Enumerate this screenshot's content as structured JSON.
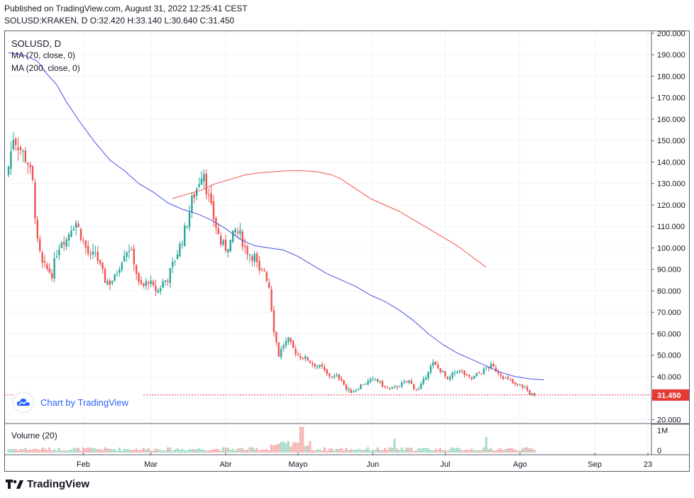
{
  "header": {
    "published": "Published on TradingView.com, August 31, 2022 12:25:41 CEST",
    "ohlc": "SOLUSD:KRAKEN, D  O:32.420  H:33.140  L:30.640  C:31.450"
  },
  "legend": {
    "symbol": "SOLUSD, D",
    "ma70": "MA (70, close, 0)",
    "ma200": "MA (200, close, 0)",
    "volume": "Volume (20)"
  },
  "attribution": "Chart by TradingView",
  "footer_logo": "TradingView",
  "colors": {
    "up": "#26a69a",
    "down": "#ef5350",
    "ma70": "#4c50e8",
    "ma200": "#f05450",
    "vol_up": "#a6dcc8",
    "vol_down": "#f5b3b3",
    "grid": "#f0f3fa",
    "last_price": "#e53935"
  },
  "chart_data": {
    "type": "candlestick",
    "symbol": "SOLUSD:KRAKEN",
    "interval": "D",
    "last_price_label": "31.450",
    "y_ticks": [
      "200.000",
      "190.000",
      "180.000",
      "170.000",
      "160.000",
      "150.000",
      "140.000",
      "130.000",
      "120.000",
      "110.000",
      "100.000",
      "90.000",
      "80.000",
      "70.000",
      "60.000",
      "50.000",
      "40.000",
      "30.000",
      "20.000"
    ],
    "ylim": [
      17.5,
      200
    ],
    "x_labels": [
      {
        "label": "Feb",
        "day": 31
      },
      {
        "label": "Mar",
        "day": 59
      },
      {
        "label": "Abr",
        "day": 90
      },
      {
        "label": "Mayo",
        "day": 120
      },
      {
        "label": "Jun",
        "day": 151
      },
      {
        "label": "Jul",
        "day": 181
      },
      {
        "label": "Ago",
        "day": 212
      },
      {
        "label": "Sep",
        "day": 243
      },
      {
        "label": "23",
        "day": 265
      }
    ],
    "volume_ticks": [
      "1M",
      "0"
    ],
    "volume_max": 1200000,
    "first_day": 0,
    "last_day": 241,
    "close_anchors": [
      [
        0,
        138
      ],
      [
        2,
        152
      ],
      [
        4,
        148
      ],
      [
        8,
        140
      ],
      [
        10,
        130
      ],
      [
        12,
        102
      ],
      [
        14,
        92
      ],
      [
        16,
        90
      ],
      [
        18,
        88
      ],
      [
        20,
        98
      ],
      [
        22,
        104
      ],
      [
        24,
        104
      ],
      [
        26,
        110
      ],
      [
        28,
        112
      ],
      [
        30,
        106
      ],
      [
        32,
        100
      ],
      [
        34,
        95
      ],
      [
        36,
        98
      ],
      [
        38,
        91
      ],
      [
        40,
        85
      ],
      [
        42,
        84
      ],
      [
        44,
        86
      ],
      [
        46,
        92
      ],
      [
        48,
        98
      ],
      [
        50,
        100
      ],
      [
        52,
        94
      ],
      [
        54,
        83
      ],
      [
        56,
        82
      ],
      [
        58,
        85
      ],
      [
        60,
        81
      ],
      [
        62,
        80
      ],
      [
        64,
        84
      ],
      [
        66,
        86
      ],
      [
        68,
        92
      ],
      [
        70,
        98
      ],
      [
        72,
        104
      ],
      [
        74,
        112
      ],
      [
        76,
        122
      ],
      [
        78,
        128
      ],
      [
        80,
        135
      ],
      [
        81,
        136
      ],
      [
        82,
        128
      ],
      [
        84,
        118
      ],
      [
        86,
        110
      ],
      [
        88,
        102
      ],
      [
        90,
        100
      ],
      [
        92,
        103
      ],
      [
        94,
        108
      ],
      [
        96,
        106
      ],
      [
        98,
        100
      ],
      [
        100,
        97
      ],
      [
        102,
        96
      ],
      [
        104,
        88
      ],
      [
        106,
        90
      ],
      [
        108,
        82
      ],
      [
        110,
        62
      ],
      [
        112,
        50
      ],
      [
        114,
        55
      ],
      [
        116,
        57
      ],
      [
        118,
        53
      ],
      [
        120,
        50
      ],
      [
        122,
        49
      ],
      [
        124,
        48
      ],
      [
        126,
        46
      ],
      [
        128,
        45
      ],
      [
        130,
        44
      ],
      [
        132,
        41
      ],
      [
        134,
        40
      ],
      [
        136,
        40
      ],
      [
        138,
        39
      ],
      [
        140,
        34
      ],
      [
        142,
        33
      ],
      [
        144,
        34
      ],
      [
        146,
        36
      ],
      [
        148,
        37
      ],
      [
        150,
        38
      ],
      [
        152,
        39
      ],
      [
        154,
        37
      ],
      [
        156,
        35
      ],
      [
        158,
        34
      ],
      [
        160,
        35
      ],
      [
        162,
        36
      ],
      [
        164,
        37
      ],
      [
        166,
        38
      ],
      [
        168,
        35
      ],
      [
        170,
        34
      ],
      [
        172,
        38
      ],
      [
        174,
        43
      ],
      [
        176,
        46
      ],
      [
        178,
        44
      ],
      [
        180,
        42
      ],
      [
        182,
        38
      ],
      [
        184,
        41
      ],
      [
        186,
        43
      ],
      [
        188,
        42
      ],
      [
        190,
        40
      ],
      [
        192,
        39
      ],
      [
        194,
        41
      ],
      [
        196,
        42
      ],
      [
        198,
        44
      ],
      [
        200,
        45
      ],
      [
        202,
        43
      ],
      [
        204,
        41
      ],
      [
        206,
        39
      ],
      [
        208,
        38
      ],
      [
        210,
        36
      ],
      [
        212,
        36
      ],
      [
        214,
        35
      ],
      [
        216,
        32
      ],
      [
        218,
        31.45
      ]
    ],
    "ma70": {
      "name": "MA (70, close, 0)",
      "points": [
        [
          0,
          191
        ],
        [
          6,
          190
        ],
        [
          12,
          187
        ],
        [
          16,
          181
        ],
        [
          20,
          176
        ],
        [
          24,
          168
        ],
        [
          30,
          158
        ],
        [
          36,
          149
        ],
        [
          42,
          141
        ],
        [
          48,
          136
        ],
        [
          54,
          130
        ],
        [
          60,
          126
        ],
        [
          66,
          121
        ],
        [
          72,
          118
        ],
        [
          78,
          116
        ],
        [
          84,
          113
        ],
        [
          90,
          109
        ],
        [
          96,
          104
        ],
        [
          102,
          101
        ],
        [
          108,
          100
        ],
        [
          114,
          99
        ],
        [
          120,
          96
        ],
        [
          126,
          92
        ],
        [
          132,
          88
        ],
        [
          138,
          85
        ],
        [
          144,
          82
        ],
        [
          150,
          78
        ],
        [
          156,
          75
        ],
        [
          162,
          71
        ],
        [
          168,
          66
        ],
        [
          174,
          60
        ],
        [
          180,
          55
        ],
        [
          186,
          51
        ],
        [
          192,
          48
        ],
        [
          198,
          45
        ],
        [
          204,
          42
        ],
        [
          210,
          40
        ],
        [
          216,
          39
        ],
        [
          222,
          38.5
        ]
      ]
    },
    "ma200": {
      "name": "MA (200, close, 0)",
      "points": [
        [
          68,
          123
        ],
        [
          74,
          125
        ],
        [
          80,
          127
        ],
        [
          86,
          130
        ],
        [
          92,
          132
        ],
        [
          98,
          134
        ],
        [
          104,
          135
        ],
        [
          110,
          135.5
        ],
        [
          116,
          136
        ],
        [
          122,
          136
        ],
        [
          128,
          135.5
        ],
        [
          134,
          134
        ],
        [
          138,
          132
        ],
        [
          142,
          129
        ],
        [
          146,
          126
        ],
        [
          150,
          123
        ],
        [
          156,
          120
        ],
        [
          162,
          117
        ],
        [
          168,
          113
        ],
        [
          174,
          109
        ],
        [
          180,
          105
        ],
        [
          186,
          101
        ],
        [
          192,
          96
        ],
        [
          198,
          91
        ]
      ]
    }
  }
}
